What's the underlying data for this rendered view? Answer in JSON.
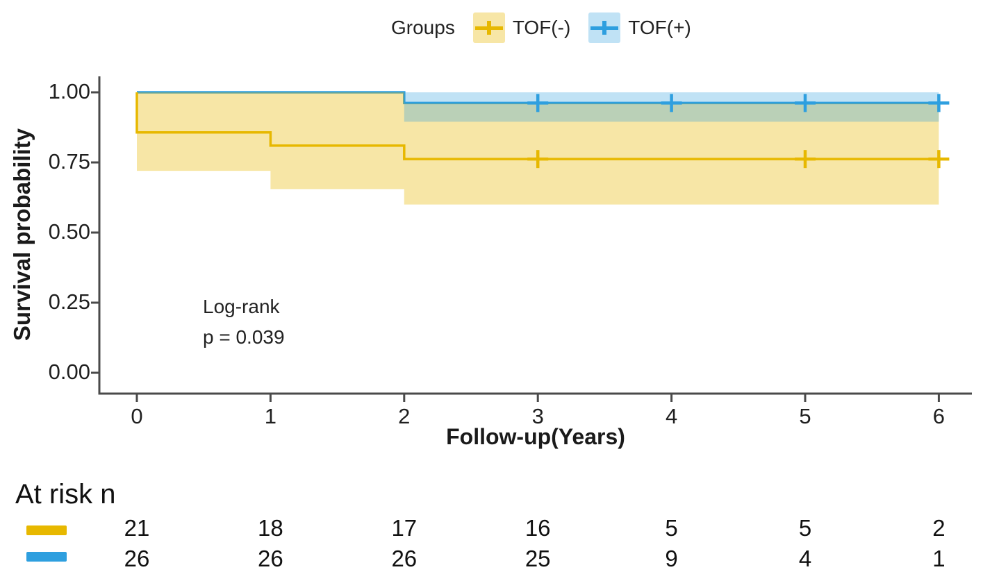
{
  "chart_data": {
    "type": "line",
    "subtype": "kaplan-meier-step",
    "legend_title": "Groups",
    "legend_position": "top",
    "xlabel": "Follow-up(Years)",
    "ylabel": "Survival probability",
    "xlim": [
      0,
      6
    ],
    "ylim": [
      0,
      1
    ],
    "grid": false,
    "xticks": [
      "0",
      "1",
      "2",
      "3",
      "4",
      "5",
      "6"
    ],
    "xtick_values": [
      0,
      1,
      2,
      3,
      4,
      5,
      6
    ],
    "ytick_labels": [
      "0.00",
      "0.25",
      "0.50",
      "0.75",
      "1.00"
    ],
    "ytick_values": [
      0,
      0.25,
      0.5,
      0.75,
      1
    ],
    "stat_test": "Log-rank",
    "p_value_text": "p = 0.039",
    "series": [
      {
        "name": "TOF(-)",
        "color": "#E7B800",
        "band_color": "rgba(231,184,0,0.35)",
        "steps": [
          [
            0,
            1.0
          ],
          [
            0,
            0.857
          ],
          [
            1,
            0.857
          ],
          [
            1,
            0.81
          ],
          [
            2,
            0.81
          ],
          [
            2,
            0.762
          ],
          [
            6,
            0.762
          ]
        ],
        "censors": [
          [
            3,
            0.762
          ],
          [
            5,
            0.762
          ],
          [
            6,
            0.762
          ]
        ],
        "ci_upper": [
          [
            0,
            1.0
          ],
          [
            2,
            1.0
          ],
          [
            2,
            0.96
          ],
          [
            6,
            0.96
          ]
        ],
        "ci_lower": [
          [
            0,
            0.72
          ],
          [
            1,
            0.72
          ],
          [
            1,
            0.655
          ],
          [
            2,
            0.655
          ],
          [
            2,
            0.6
          ],
          [
            6,
            0.6
          ]
        ]
      },
      {
        "name": "TOF(+)",
        "color": "#2E9FDF",
        "band_color": "rgba(46,159,223,0.30)",
        "steps": [
          [
            0,
            1.0
          ],
          [
            2,
            1.0
          ],
          [
            2,
            0.962
          ],
          [
            6,
            0.962
          ]
        ],
        "censors": [
          [
            3,
            0.962
          ],
          [
            4,
            0.962
          ],
          [
            5,
            0.962
          ],
          [
            6,
            0.962
          ]
        ],
        "ci_upper": [
          [
            0,
            1.0
          ],
          [
            6,
            1.0
          ]
        ],
        "ci_lower": [
          [
            0,
            1.0
          ],
          [
            2,
            1.0
          ],
          [
            2,
            0.895
          ],
          [
            6,
            0.895
          ]
        ]
      }
    ],
    "risk_table": {
      "title": "At risk n",
      "rows": [
        {
          "group": "TOF(-)",
          "color": "#E7B800",
          "values": [
            "21",
            "18",
            "17",
            "16",
            "5",
            "5",
            "2"
          ]
        },
        {
          "group": "TOF(+)",
          "color": "#2E9FDF",
          "values": [
            "26",
            "26",
            "26",
            "25",
            "9",
            "4",
            "1"
          ]
        }
      ]
    }
  }
}
